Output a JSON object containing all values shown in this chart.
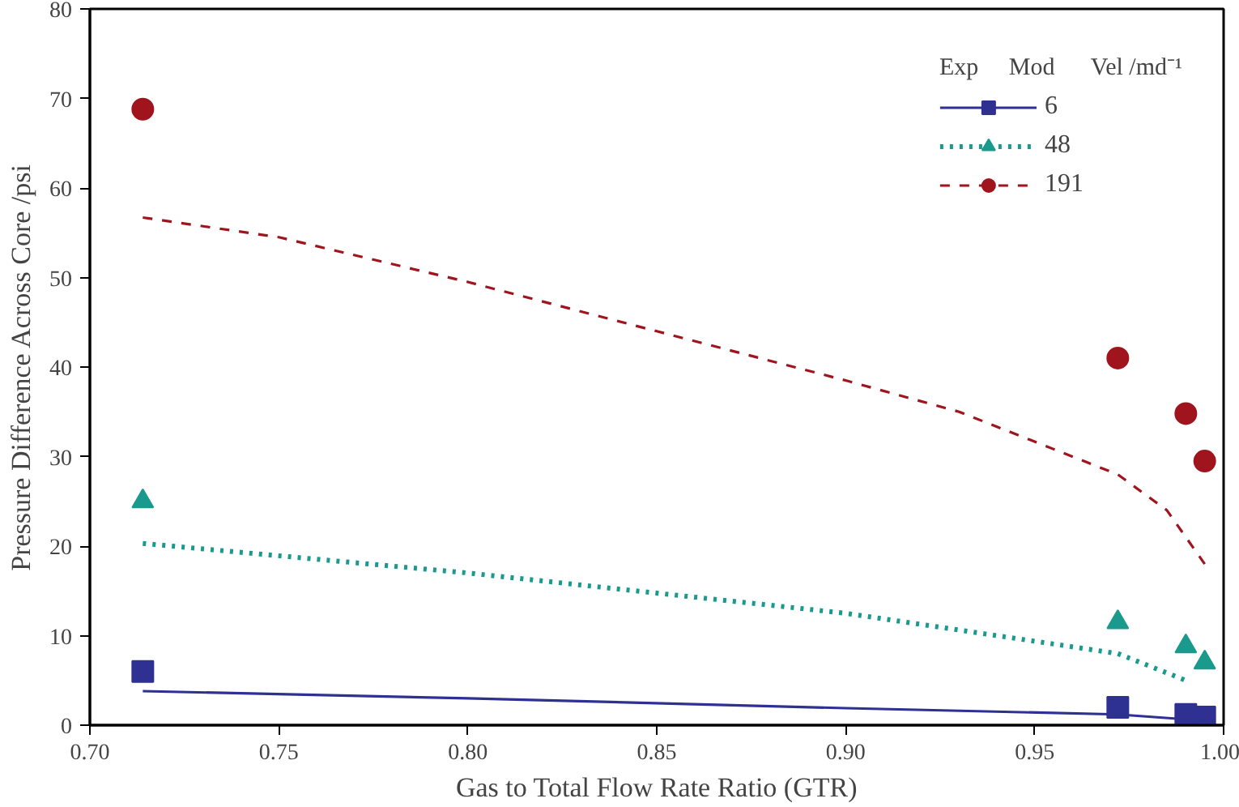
{
  "chart_data": {
    "type": "scatter",
    "xlabel": "Gas to Total Flow Rate Ratio (GTR)",
    "ylabel": "Pressure Difference Across Core /psi",
    "legend_title": "Exp     Mod      Vel /md⁻¹",
    "xlim": [
      0.7,
      1.0
    ],
    "xticks": [
      {
        "value": 0.7,
        "label": "0.70"
      },
      {
        "value": 0.75,
        "label": "0.75"
      },
      {
        "value": 0.8,
        "label": "0.80"
      },
      {
        "value": 0.85,
        "label": "0.85"
      },
      {
        "value": 0.9,
        "label": "0.90"
      },
      {
        "value": 0.95,
        "label": "0.95"
      },
      {
        "value": 1.0,
        "label": "1.00"
      }
    ],
    "ylim": [
      0,
      80
    ],
    "yticks": [
      0,
      10,
      20,
      30,
      40,
      50,
      60,
      70,
      80
    ],
    "grid": false,
    "legend": "top right",
    "series": [
      {
        "name": "6",
        "marker": "square",
        "color": "#2e3192",
        "x": [
          0.714,
          0.972,
          0.99,
          0.995
        ],
        "values": [
          6,
          2,
          1.2,
          0.9
        ]
      },
      {
        "name": "48",
        "marker": "triangle",
        "color": "#1a9a8c",
        "x": [
          0.714,
          0.972,
          0.99,
          0.995
        ],
        "values": [
          25,
          11.5,
          8.8,
          7
        ]
      },
      {
        "name": "191",
        "marker": "circle",
        "color": "#a0141e",
        "x": [
          0.714,
          0.972,
          0.99,
          0.995
        ],
        "values": [
          68.8,
          41,
          34.8,
          29.5
        ]
      },
      {
        "type": "line",
        "line_style": "solid",
        "color": "#2e3192",
        "x": [
          0.714,
          0.8,
          0.9,
          0.972,
          0.995
        ],
        "values": [
          3.8,
          3,
          1.9,
          1.2,
          0.5
        ]
      },
      {
        "type": "line",
        "line_style": "dotted",
        "color": "#1a9a8c",
        "x": [
          0.714,
          0.8,
          0.9,
          0.972,
          0.99
        ],
        "values": [
          20.3,
          17,
          12.5,
          8,
          5
        ]
      },
      {
        "type": "line",
        "line_style": "dashed",
        "color": "#a0141e",
        "x": [
          0.714,
          0.75,
          0.8,
          0.85,
          0.9,
          0.93,
          0.972,
          0.985,
          0.995
        ],
        "values": [
          56.7,
          54.5,
          49.5,
          44,
          38.5,
          35,
          28,
          24,
          18
        ]
      }
    ]
  }
}
